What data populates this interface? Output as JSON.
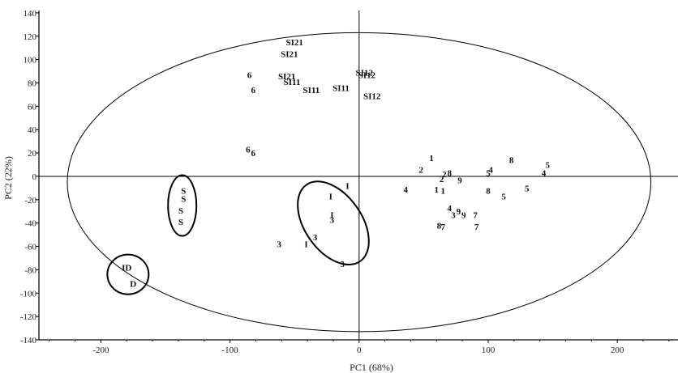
{
  "chart_data": {
    "type": "scatter",
    "title": "",
    "xlabel": "PC1 (68%)",
    "ylabel": "PC2 (22%)",
    "xlim": [
      -248,
      247
    ],
    "ylim": [
      -140,
      142
    ],
    "xticks": [
      -200,
      -100,
      0,
      100,
      200
    ],
    "yticks": [
      140,
      120,
      100,
      80,
      60,
      40,
      20,
      0,
      -20,
      -40,
      -60,
      -80,
      -100,
      -120,
      -140
    ],
    "grid": false,
    "origin_axes": true,
    "confidence_ellipse": {
      "cx": 0,
      "cy": -5,
      "rx": 226,
      "ry": 128
    },
    "group_circles": [
      {
        "cx": -137,
        "cy": -25,
        "rx": 11,
        "ry": 26
      },
      {
        "cx": -20,
        "cy": -40,
        "rx": 22,
        "ry": 40,
        "rotation_deg": -35
      },
      {
        "cx": -179,
        "cy": -84,
        "rx": 16,
        "ry": 17
      }
    ],
    "points": [
      {
        "label": "SI21",
        "x": -50,
        "y": 115
      },
      {
        "label": "SI21",
        "x": -54,
        "y": 105
      },
      {
        "label": "6",
        "x": -85,
        "y": 87
      },
      {
        "label": "SI21",
        "x": -56,
        "y": 86
      },
      {
        "label": "SI11",
        "x": -52,
        "y": 81
      },
      {
        "label": "6",
        "x": -82,
        "y": 74
      },
      {
        "label": "SI11",
        "x": -37,
        "y": 74
      },
      {
        "label": "SI11",
        "x": -14,
        "y": 76
      },
      {
        "label": "SI12",
        "x": 4,
        "y": 89
      },
      {
        "label": "SI12",
        "x": 6,
        "y": 87
      },
      {
        "label": "SI12",
        "x": 10,
        "y": 69
      },
      {
        "label": "6",
        "x": -86,
        "y": 23
      },
      {
        "label": "6",
        "x": -82,
        "y": 20
      },
      {
        "label": "1",
        "x": 56,
        "y": 16
      },
      {
        "label": "2",
        "x": 48,
        "y": 6
      },
      {
        "label": "2",
        "x": 66,
        "y": 2
      },
      {
        "label": "8",
        "x": 70,
        "y": 3
      },
      {
        "label": "2",
        "x": 64,
        "y": -2
      },
      {
        "label": "9",
        "x": 78,
        "y": -3
      },
      {
        "label": "8",
        "x": 118,
        "y": 14
      },
      {
        "label": "5",
        "x": 146,
        "y": 10
      },
      {
        "label": "4",
        "x": 102,
        "y": 6
      },
      {
        "label": "5",
        "x": 100,
        "y": 3
      },
      {
        "label": "4",
        "x": 143,
        "y": 3
      },
      {
        "label": "4",
        "x": 36,
        "y": -11
      },
      {
        "label": "1",
        "x": 60,
        "y": -11
      },
      {
        "label": "1",
        "x": 65,
        "y": -12
      },
      {
        "label": "8",
        "x": 100,
        "y": -12
      },
      {
        "label": "5",
        "x": 130,
        "y": -10
      },
      {
        "label": "5",
        "x": 112,
        "y": -17
      },
      {
        "label": "4",
        "x": 70,
        "y": -27
      },
      {
        "label": "9",
        "x": 77,
        "y": -30
      },
      {
        "label": "9",
        "x": 81,
        "y": -33
      },
      {
        "label": "3",
        "x": 73,
        "y": -33
      },
      {
        "label": "7",
        "x": 90,
        "y": -33
      },
      {
        "label": "8",
        "x": 62,
        "y": -42
      },
      {
        "label": "7",
        "x": 65,
        "y": -43
      },
      {
        "label": "7",
        "x": 91,
        "y": -43
      },
      {
        "label": "S",
        "x": -136,
        "y": -12
      },
      {
        "label": "S",
        "x": -136,
        "y": -19
      },
      {
        "label": "S",
        "x": -138,
        "y": -29
      },
      {
        "label": "S",
        "x": -138,
        "y": -39
      },
      {
        "label": "I",
        "x": -9,
        "y": -8
      },
      {
        "label": "I",
        "x": -22,
        "y": -17
      },
      {
        "label": "I",
        "x": -21,
        "y": -33
      },
      {
        "label": "3",
        "x": -21,
        "y": -37
      },
      {
        "label": "3",
        "x": -34,
        "y": -52
      },
      {
        "label": "I",
        "x": -41,
        "y": -58
      },
      {
        "label": "3",
        "x": -62,
        "y": -58
      },
      {
        "label": "3",
        "x": -13,
        "y": -75
      },
      {
        "label": "ID",
        "x": -180,
        "y": -78
      },
      {
        "label": "D",
        "x": -175,
        "y": -92
      }
    ]
  }
}
